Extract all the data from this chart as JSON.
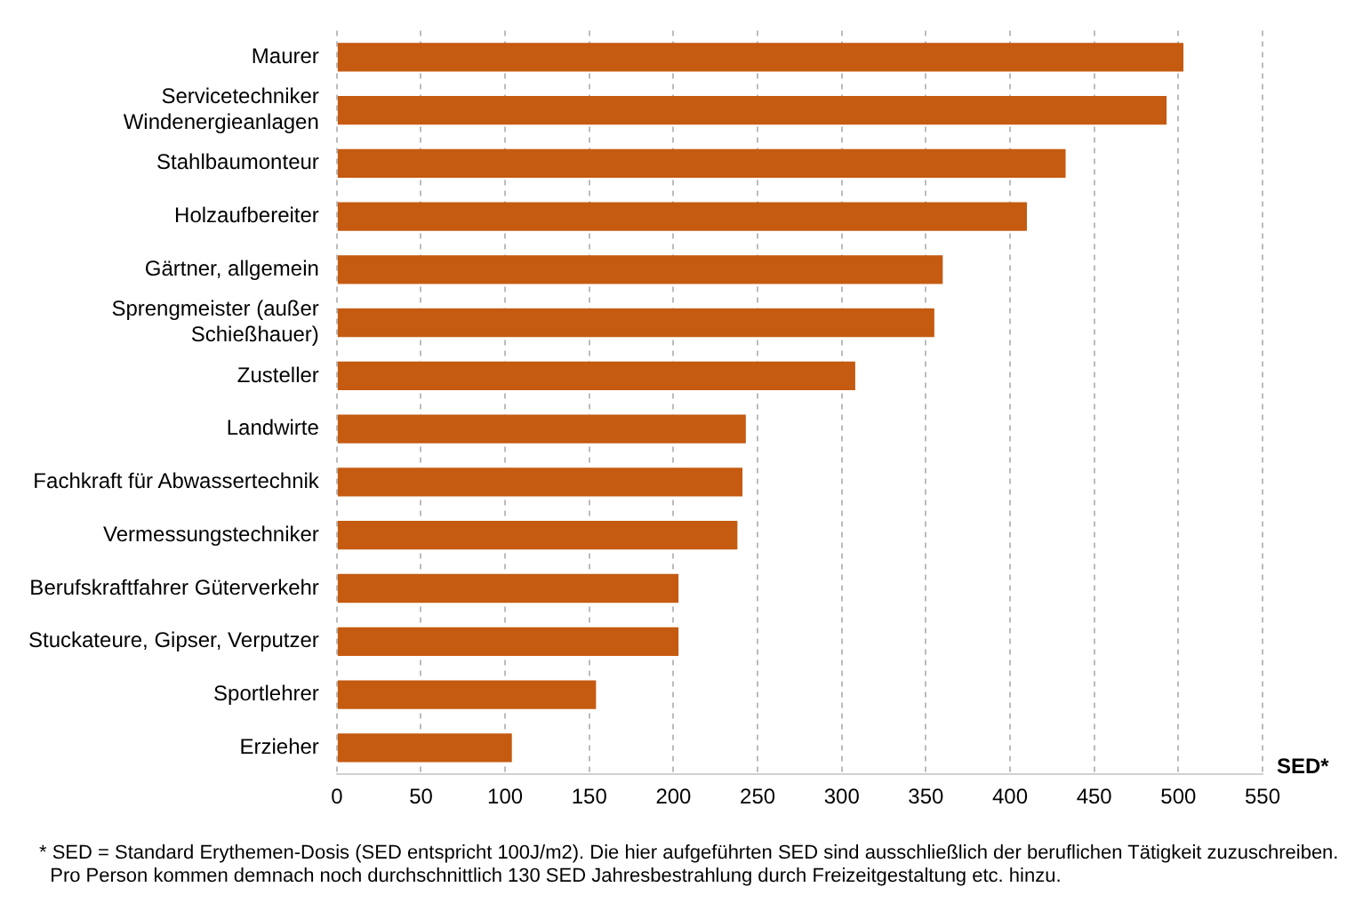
{
  "chart_data": {
    "type": "bar",
    "orientation": "horizontal",
    "xlabel": "SED*",
    "categories": [
      "Maurer",
      "Servicetechniker Windenergieanlagen",
      "Stahlbaumonteur",
      "Holzaufbereiter",
      "Gärtner, allgemein",
      "Sprengmeister (außer Schießhauer)",
      "Zusteller",
      "Landwirte",
      "Fachkraft für Abwassertechnik",
      "Vermessungstechniker",
      "Berufskraftfahrer Güterverkehr",
      "Stuckateure, Gipser, Verputzer",
      "Sportlehrer",
      "Erzieher"
    ],
    "values": [
      503,
      493,
      433,
      410,
      360,
      355,
      308,
      243,
      241,
      238,
      203,
      203,
      154,
      104
    ],
    "color": "#c55a11",
    "xlim": [
      0,
      550
    ],
    "xticks": [
      0,
      50,
      100,
      150,
      200,
      250,
      300,
      350,
      400,
      450,
      500,
      550
    ],
    "grid": "x",
    "legend": false,
    "annotations": [
      "* SED = Standard Erythemen-Dosis (SED entspricht 100J/m2). Die hier aufgeführten SED sind ausschließlich der beruflichen Tätigkeit zuzuschreiben.",
      "  Pro Person kommen demnach noch durchschnittlich 130 SED Jahresbestrahlung durch Freizeitgestaltung etc. hinzu."
    ]
  }
}
